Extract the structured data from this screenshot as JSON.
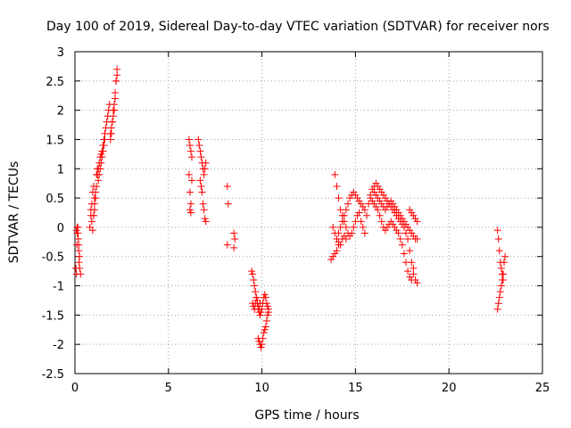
{
  "chart_data": {
    "type": "scatter",
    "title": "Day 100 of 2019, Sidereal Day-to-day VTEC variation (SDTVAR) for receiver nors",
    "xlabel": "GPS time / hours",
    "ylabel": "SDTVAR / TECUs",
    "xlim": [
      0,
      25
    ],
    "ylim": [
      -2.5,
      3
    ],
    "xticks": [
      0,
      5,
      10,
      15,
      20,
      25
    ],
    "xtick_labels": [
      "0",
      "5",
      "10",
      "15",
      "20",
      "25"
    ],
    "yticks": [
      -2.5,
      -2,
      -1.5,
      -1,
      -0.5,
      0,
      0.5,
      1,
      1.5,
      2,
      2.5,
      3
    ],
    "ytick_labels": [
      "-2.5",
      "-2",
      "-1.5",
      "-1",
      "-0.5",
      "0",
      "0.5",
      "1",
      "1.5",
      "2",
      "2.5",
      "3"
    ],
    "grid": true,
    "marker": "+",
    "color": "#ff0000",
    "series": [
      {
        "name": "SDTVAR",
        "x": [
          0.05,
          0.08,
          0.1,
          0.12,
          0.15,
          0.18,
          0.2,
          0.22,
          0.25,
          0.08,
          0.12,
          0.16,
          0.2,
          0.25,
          0.3,
          0.8,
          0.85,
          0.9,
          0.95,
          1.0,
          1.05,
          0.85,
          0.9,
          0.95,
          1.0,
          1.05,
          1.1,
          1.15,
          1.2,
          1.25,
          1.3,
          1.35,
          1.4,
          1.45,
          1.5,
          1.55,
          1.6,
          1.0,
          1.05,
          1.1,
          1.15,
          1.2,
          1.25,
          1.3,
          1.35,
          1.4,
          1.45,
          1.5,
          1.55,
          1.6,
          1.65,
          1.7,
          1.75,
          1.8,
          1.85,
          1.9,
          1.95,
          2.0,
          2.05,
          2.1,
          2.15,
          2.2,
          2.25,
          1.9,
          1.95,
          2.0,
          2.05,
          2.1,
          2.15,
          2.2,
          2.25,
          6.1,
          6.15,
          6.2,
          6.25,
          6.1,
          6.15,
          6.2,
          6.15,
          6.2,
          6.25,
          6.6,
          6.65,
          6.7,
          6.75,
          6.8,
          6.85,
          6.9,
          6.95,
          7.0,
          6.7,
          6.75,
          6.8,
          6.85,
          6.9,
          6.95,
          7.0,
          8.15,
          8.2,
          8.15,
          8.5,
          8.55,
          8.5,
          9.45,
          9.5,
          9.55,
          9.6,
          9.65,
          9.7,
          9.75,
          9.8,
          9.85,
          9.9,
          9.95,
          10.0,
          10.05,
          10.1,
          10.15,
          10.2,
          10.25,
          10.3,
          10.35,
          9.5,
          9.55,
          9.6,
          9.65,
          9.7,
          9.75,
          9.8,
          9.85,
          9.9,
          9.8,
          9.85,
          9.9,
          9.95,
          10.0,
          10.05,
          10.1,
          10.15,
          10.2,
          10.25,
          10.3,
          10.35,
          13.7,
          13.8,
          13.9,
          14.0,
          14.1,
          13.8,
          13.9,
          14.0,
          14.1,
          14.2,
          14.3,
          14.4,
          14.5,
          14.6,
          14.7,
          14.8,
          14.9,
          15.0,
          15.1,
          15.2,
          15.3,
          15.4,
          15.5,
          13.9,
          14.0,
          14.1,
          14.2,
          14.3,
          14.4,
          14.5,
          14.6,
          14.7,
          14.8,
          14.9,
          15.0,
          15.1,
          15.2,
          15.3,
          15.4,
          15.5,
          14.0,
          14.1,
          14.2,
          14.3,
          14.4,
          14.5,
          15.6,
          15.7,
          15.8,
          15.9,
          16.0,
          16.1,
          16.2,
          16.3,
          16.4,
          16.5,
          16.6,
          16.7,
          16.8,
          16.9,
          17.0,
          17.1,
          17.2,
          17.3,
          17.4,
          17.5,
          17.6,
          17.7,
          17.8,
          17.9,
          18.0,
          18.1,
          18.2,
          18.3,
          15.8,
          15.9,
          16.0,
          16.1,
          16.2,
          16.3,
          16.4,
          16.5,
          16.6,
          16.7,
          16.8,
          16.9,
          17.0,
          17.1,
          17.2,
          17.3,
          17.4,
          17.5,
          17.6,
          17.7,
          17.8,
          17.9,
          18.0,
          18.1,
          16.0,
          16.1,
          16.2,
          16.3,
          16.4,
          16.5,
          16.6,
          16.7,
          16.8,
          16.9,
          17.0,
          17.1,
          17.2,
          17.3,
          17.4,
          17.5,
          17.6,
          17.7,
          17.8,
          17.9,
          18.0,
          18.1,
          18.2,
          18.3,
          17.9,
          18.0,
          18.1,
          18.2,
          18.3,
          22.6,
          22.65,
          22.7,
          22.75,
          22.8,
          22.85,
          22.9,
          22.95,
          23.0,
          22.6,
          22.65,
          22.7,
          22.75,
          22.8,
          22.85,
          22.9
        ],
        "y": [
          -0.7,
          -0.8,
          -0.3,
          -0.1,
          0.0,
          -0.2,
          -0.4,
          -0.6,
          -0.7,
          -0.05,
          0.0,
          -0.1,
          -0.3,
          -0.5,
          -0.8,
          0.0,
          0.2,
          0.4,
          0.6,
          0.7,
          0.5,
          0.3,
          0.1,
          -0.05,
          0.2,
          0.4,
          0.6,
          0.9,
          1.0,
          0.8,
          0.9,
          1.0,
          1.1,
          1.2,
          1.3,
          1.4,
          1.5,
          0.2,
          0.3,
          0.5,
          0.7,
          0.9,
          1.0,
          1.1,
          1.2,
          1.25,
          1.3,
          1.4,
          1.5,
          1.6,
          1.7,
          1.8,
          1.9,
          2.0,
          2.1,
          1.6,
          1.7,
          1.8,
          1.9,
          2.0,
          2.2,
          2.5,
          2.7,
          1.5,
          1.6,
          1.8,
          2.0,
          2.1,
          2.3,
          2.5,
          2.6,
          1.5,
          1.4,
          1.3,
          1.2,
          0.9,
          0.6,
          0.4,
          0.3,
          0.25,
          0.8,
          1.5,
          1.4,
          1.3,
          1.2,
          1.1,
          1.0,
          0.9,
          1.0,
          1.1,
          0.8,
          0.7,
          0.6,
          0.4,
          0.3,
          0.15,
          0.1,
          0.7,
          0.4,
          -0.3,
          -0.1,
          -0.2,
          -0.35,
          -0.75,
          -0.8,
          -0.9,
          -1.0,
          -1.1,
          -1.2,
          -1.3,
          -1.4,
          -1.45,
          -1.5,
          -1.45,
          -1.4,
          -1.3,
          -1.2,
          -1.15,
          -1.2,
          -1.3,
          -1.35,
          -1.4,
          -1.3,
          -1.35,
          -1.4,
          -1.3,
          -1.2,
          -1.25,
          -1.35,
          -1.4,
          -1.3,
          -1.9,
          -1.95,
          -2.0,
          -2.05,
          -2.0,
          -1.9,
          -1.8,
          -1.75,
          -1.7,
          -1.6,
          -1.5,
          -1.45,
          -0.55,
          -0.5,
          -0.45,
          -0.4,
          -0.3,
          0.0,
          -0.1,
          -0.2,
          -0.1,
          0.0,
          0.1,
          0.2,
          0.3,
          0.4,
          0.5,
          0.55,
          0.6,
          0.55,
          0.5,
          0.45,
          0.4,
          0.35,
          0.3,
          0.9,
          0.7,
          0.5,
          0.3,
          0.2,
          0.1,
          0.0,
          -0.1,
          -0.15,
          -0.1,
          0.0,
          0.1,
          0.2,
          0.25,
          0.1,
          0.0,
          -0.1,
          -0.2,
          -0.25,
          -0.3,
          -0.2,
          -0.15,
          -0.2,
          0.2,
          0.4,
          0.55,
          0.65,
          0.7,
          0.75,
          0.7,
          0.65,
          0.6,
          0.55,
          0.5,
          0.45,
          0.4,
          0.35,
          0.3,
          0.25,
          0.2,
          0.15,
          0.1,
          0.05,
          0.0,
          -0.1,
          -0.2,
          -0.4,
          -0.6,
          -0.8,
          -0.9,
          -0.95,
          0.5,
          0.45,
          0.4,
          0.35,
          0.3,
          0.2,
          0.1,
          0.0,
          -0.05,
          0.0,
          0.05,
          0.1,
          0.05,
          0.0,
          -0.05,
          -0.1,
          -0.2,
          -0.3,
          -0.45,
          -0.6,
          -0.75,
          -0.85,
          -0.9,
          -0.7,
          0.6,
          0.55,
          0.5,
          0.45,
          0.4,
          0.35,
          0.3,
          0.35,
          0.4,
          0.45,
          0.4,
          0.35,
          0.3,
          0.25,
          0.2,
          0.15,
          0.1,
          0.05,
          0.0,
          -0.05,
          -0.1,
          -0.15,
          -0.2,
          -0.2,
          0.3,
          0.25,
          0.2,
          0.15,
          0.1,
          -0.05,
          -0.2,
          -0.4,
          -0.6,
          -0.7,
          -0.8,
          -0.9,
          -0.6,
          -0.5,
          -1.4,
          -1.3,
          -1.2,
          -1.1,
          -1.0,
          -0.9,
          -0.8
        ]
      }
    ]
  }
}
